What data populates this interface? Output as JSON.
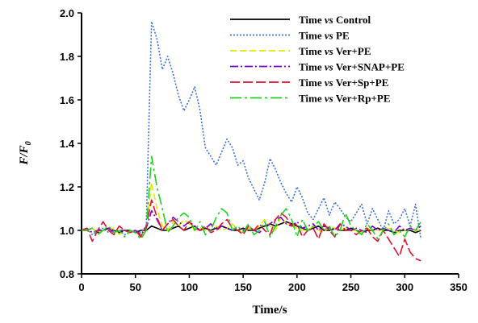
{
  "chart_data": {
    "type": "line",
    "xlabel": "Time/s",
    "ylabel": "F/F",
    "ylabel_sub": "0",
    "xlim": [
      0,
      350
    ],
    "ylim": [
      0.8,
      2.0
    ],
    "xticks": [
      0,
      50,
      100,
      150,
      200,
      250,
      300,
      350
    ],
    "yticks": [
      0.8,
      1.0,
      1.2,
      1.4,
      1.6,
      1.8,
      2.0
    ],
    "xtick_labels": [
      "0",
      "50",
      "100",
      "150",
      "200",
      "250",
      "300",
      "350"
    ],
    "ytick_labels": [
      "0.8",
      "1.0",
      "1.2",
      "1.4",
      "1.6",
      "1.8",
      "2.0"
    ],
    "grid": false,
    "legend_position": "top-right",
    "x": [
      0,
      5,
      10,
      15,
      20,
      25,
      30,
      35,
      40,
      45,
      50,
      55,
      60,
      65,
      70,
      75,
      80,
      85,
      90,
      95,
      100,
      105,
      110,
      115,
      120,
      125,
      130,
      135,
      140,
      145,
      150,
      155,
      160,
      165,
      170,
      175,
      180,
      185,
      190,
      195,
      200,
      205,
      210,
      215,
      220,
      225,
      230,
      235,
      240,
      245,
      250,
      255,
      260,
      265,
      270,
      275,
      280,
      285,
      290,
      295,
      300,
      305,
      310,
      315
    ],
    "series": [
      {
        "name_prefix": "Time ",
        "name_vs": "vs",
        "name_suffix": " Control",
        "color": "#000000",
        "dash": "",
        "values": [
          1.0,
          1.0,
          1.01,
          0.99,
          1.0,
          1.01,
          1.0,
          0.99,
          1.0,
          1.0,
          0.99,
          1.0,
          1.0,
          1.02,
          1.01,
          1.0,
          1.0,
          1.01,
          1.02,
          1.0,
          1.01,
          1.02,
          1.0,
          1.01,
          1.0,
          1.01,
          1.02,
          1.01,
          1.0,
          1.0,
          1.01,
          1.0,
          1.0,
          1.01,
          1.02,
          1.03,
          1.02,
          1.03,
          1.04,
          1.03,
          1.02,
          1.01,
          1.0,
          1.01,
          1.02,
          1.0,
          1.0,
          1.01,
          1.0,
          1.0,
          1.01,
          1.0,
          0.99,
          1.0,
          1.0,
          1.01,
          1.0,
          1.0,
          0.99,
          1.0,
          1.0,
          1.0,
          0.99,
          1.0
        ]
      },
      {
        "name_prefix": "Time ",
        "name_vs": "vs",
        "name_suffix": " PE",
        "color": "#3b6fe0",
        "dash": "2,2",
        "values": [
          1.0,
          1.01,
          0.98,
          1.0,
          1.01,
          0.99,
          1.0,
          1.0,
          0.98,
          0.99,
          1.0,
          0.99,
          1.02,
          1.96,
          1.88,
          1.74,
          1.8,
          1.72,
          1.62,
          1.55,
          1.6,
          1.66,
          1.55,
          1.38,
          1.34,
          1.3,
          1.36,
          1.42,
          1.38,
          1.3,
          1.32,
          1.24,
          1.19,
          1.14,
          1.22,
          1.33,
          1.28,
          1.22,
          1.17,
          1.13,
          1.2,
          1.15,
          1.08,
          1.05,
          1.1,
          1.15,
          1.07,
          1.13,
          1.1,
          1.06,
          1.04,
          1.08,
          1.12,
          1.03,
          1.1,
          1.05,
          1.0,
          1.09,
          1.03,
          1.05,
          1.1,
          1.02,
          1.12,
          0.96
        ]
      },
      {
        "name_prefix": "Time ",
        "name_vs": "vs",
        "name_suffix": " Ver+PE",
        "color": "#e6e600",
        "dash": "8,4",
        "values": [
          1.0,
          1.0,
          1.01,
          0.99,
          1.0,
          1.0,
          1.01,
          0.98,
          1.0,
          0.99,
          1.0,
          0.98,
          1.0,
          1.22,
          1.1,
          1.02,
          1.0,
          1.04,
          1.02,
          1.05,
          1.03,
          1.0,
          1.01,
          1.0,
          1.03,
          1.02,
          1.0,
          1.01,
          1.03,
          1.0,
          0.99,
          1.01,
          1.0,
          1.02,
          1.05,
          1.02,
          1.0,
          1.06,
          1.03,
          1.02,
          1.01,
          1.0,
          1.0,
          1.02,
          1.0,
          0.99,
          1.02,
          1.01,
          1.0,
          1.01,
          1.0,
          1.0,
          0.99,
          1.01,
          1.0,
          1.0,
          1.0,
          1.01,
          1.0,
          0.99,
          1.0,
          1.01,
          1.0,
          1.0
        ]
      },
      {
        "name_prefix": "Time ",
        "name_vs": "vs",
        "name_suffix": " Ver+SNAP+PE",
        "color": "#7a00d4",
        "dash": "10,3,2,3",
        "values": [
          1.0,
          1.01,
          0.99,
          1.0,
          1.0,
          1.01,
          0.99,
          1.0,
          1.0,
          0.99,
          1.0,
          0.98,
          1.01,
          1.09,
          1.05,
          1.0,
          1.03,
          1.06,
          1.04,
          1.02,
          1.04,
          1.02,
          1.0,
          1.01,
          1.03,
          1.0,
          1.02,
          1.01,
          1.0,
          1.01,
          1.0,
          1.02,
          1.0,
          0.99,
          1.01,
          1.03,
          1.05,
          1.06,
          1.03,
          1.02,
          1.04,
          1.01,
          1.02,
          1.03,
          1.0,
          1.02,
          1.01,
          1.0,
          1.03,
          1.02,
          1.0,
          1.01,
          1.0,
          0.99,
          1.02,
          1.0,
          1.01,
          1.0,
          0.99,
          1.02,
          1.0,
          1.01,
          1.0,
          1.02
        ]
      },
      {
        "name_prefix": "Time ",
        "name_vs": "vs",
        "name_suffix": " Ver+Sp+PE",
        "color": "#e0102f",
        "dash": "12,4",
        "values": [
          1.0,
          1.01,
          0.95,
          1.0,
          1.04,
          1.0,
          0.98,
          1.02,
          1.0,
          0.99,
          1.0,
          0.97,
          1.02,
          1.14,
          1.06,
          1.0,
          1.03,
          1.05,
          1.02,
          1.0,
          1.04,
          1.01,
          1.0,
          1.02,
          0.99,
          1.0,
          1.03,
          1.05,
          1.01,
          1.0,
          0.98,
          1.02,
          1.0,
          1.03,
          1.0,
          0.98,
          1.05,
          1.08,
          1.06,
          1.02,
          1.03,
          0.97,
          1.0,
          1.01,
          0.96,
          1.03,
          1.0,
          0.97,
          1.03,
          1.0,
          1.0,
          0.98,
          1.0,
          1.01,
          0.97,
          0.95,
          1.0,
          0.96,
          0.92,
          0.88,
          0.96,
          0.9,
          0.87,
          0.86
        ]
      },
      {
        "name_prefix": "Time ",
        "name_vs": "vs",
        "name_suffix": " Ver+Rp+PE",
        "color": "#1fd21f",
        "dash": "14,4,3,4",
        "values": [
          1.0,
          1.0,
          1.01,
          0.98,
          1.0,
          1.02,
          0.99,
          1.0,
          0.97,
          1.0,
          0.99,
          0.96,
          1.0,
          1.34,
          1.2,
          1.1,
          0.99,
          1.02,
          1.06,
          1.08,
          1.06,
          1.0,
          1.04,
          0.98,
          1.0,
          1.06,
          1.1,
          1.08,
          1.0,
          1.02,
          0.99,
          1.03,
          0.98,
          1.0,
          1.04,
          0.97,
          1.02,
          1.07,
          1.1,
          1.05,
          0.97,
          1.05,
          1.0,
          1.02,
          1.04,
          1.0,
          1.02,
          0.97,
          1.0,
          1.08,
          1.02,
          1.0,
          0.98,
          1.03,
          1.0,
          0.96,
          1.0,
          1.03,
          0.98,
          1.0,
          0.97,
          1.02,
          1.0,
          1.04
        ]
      }
    ]
  }
}
